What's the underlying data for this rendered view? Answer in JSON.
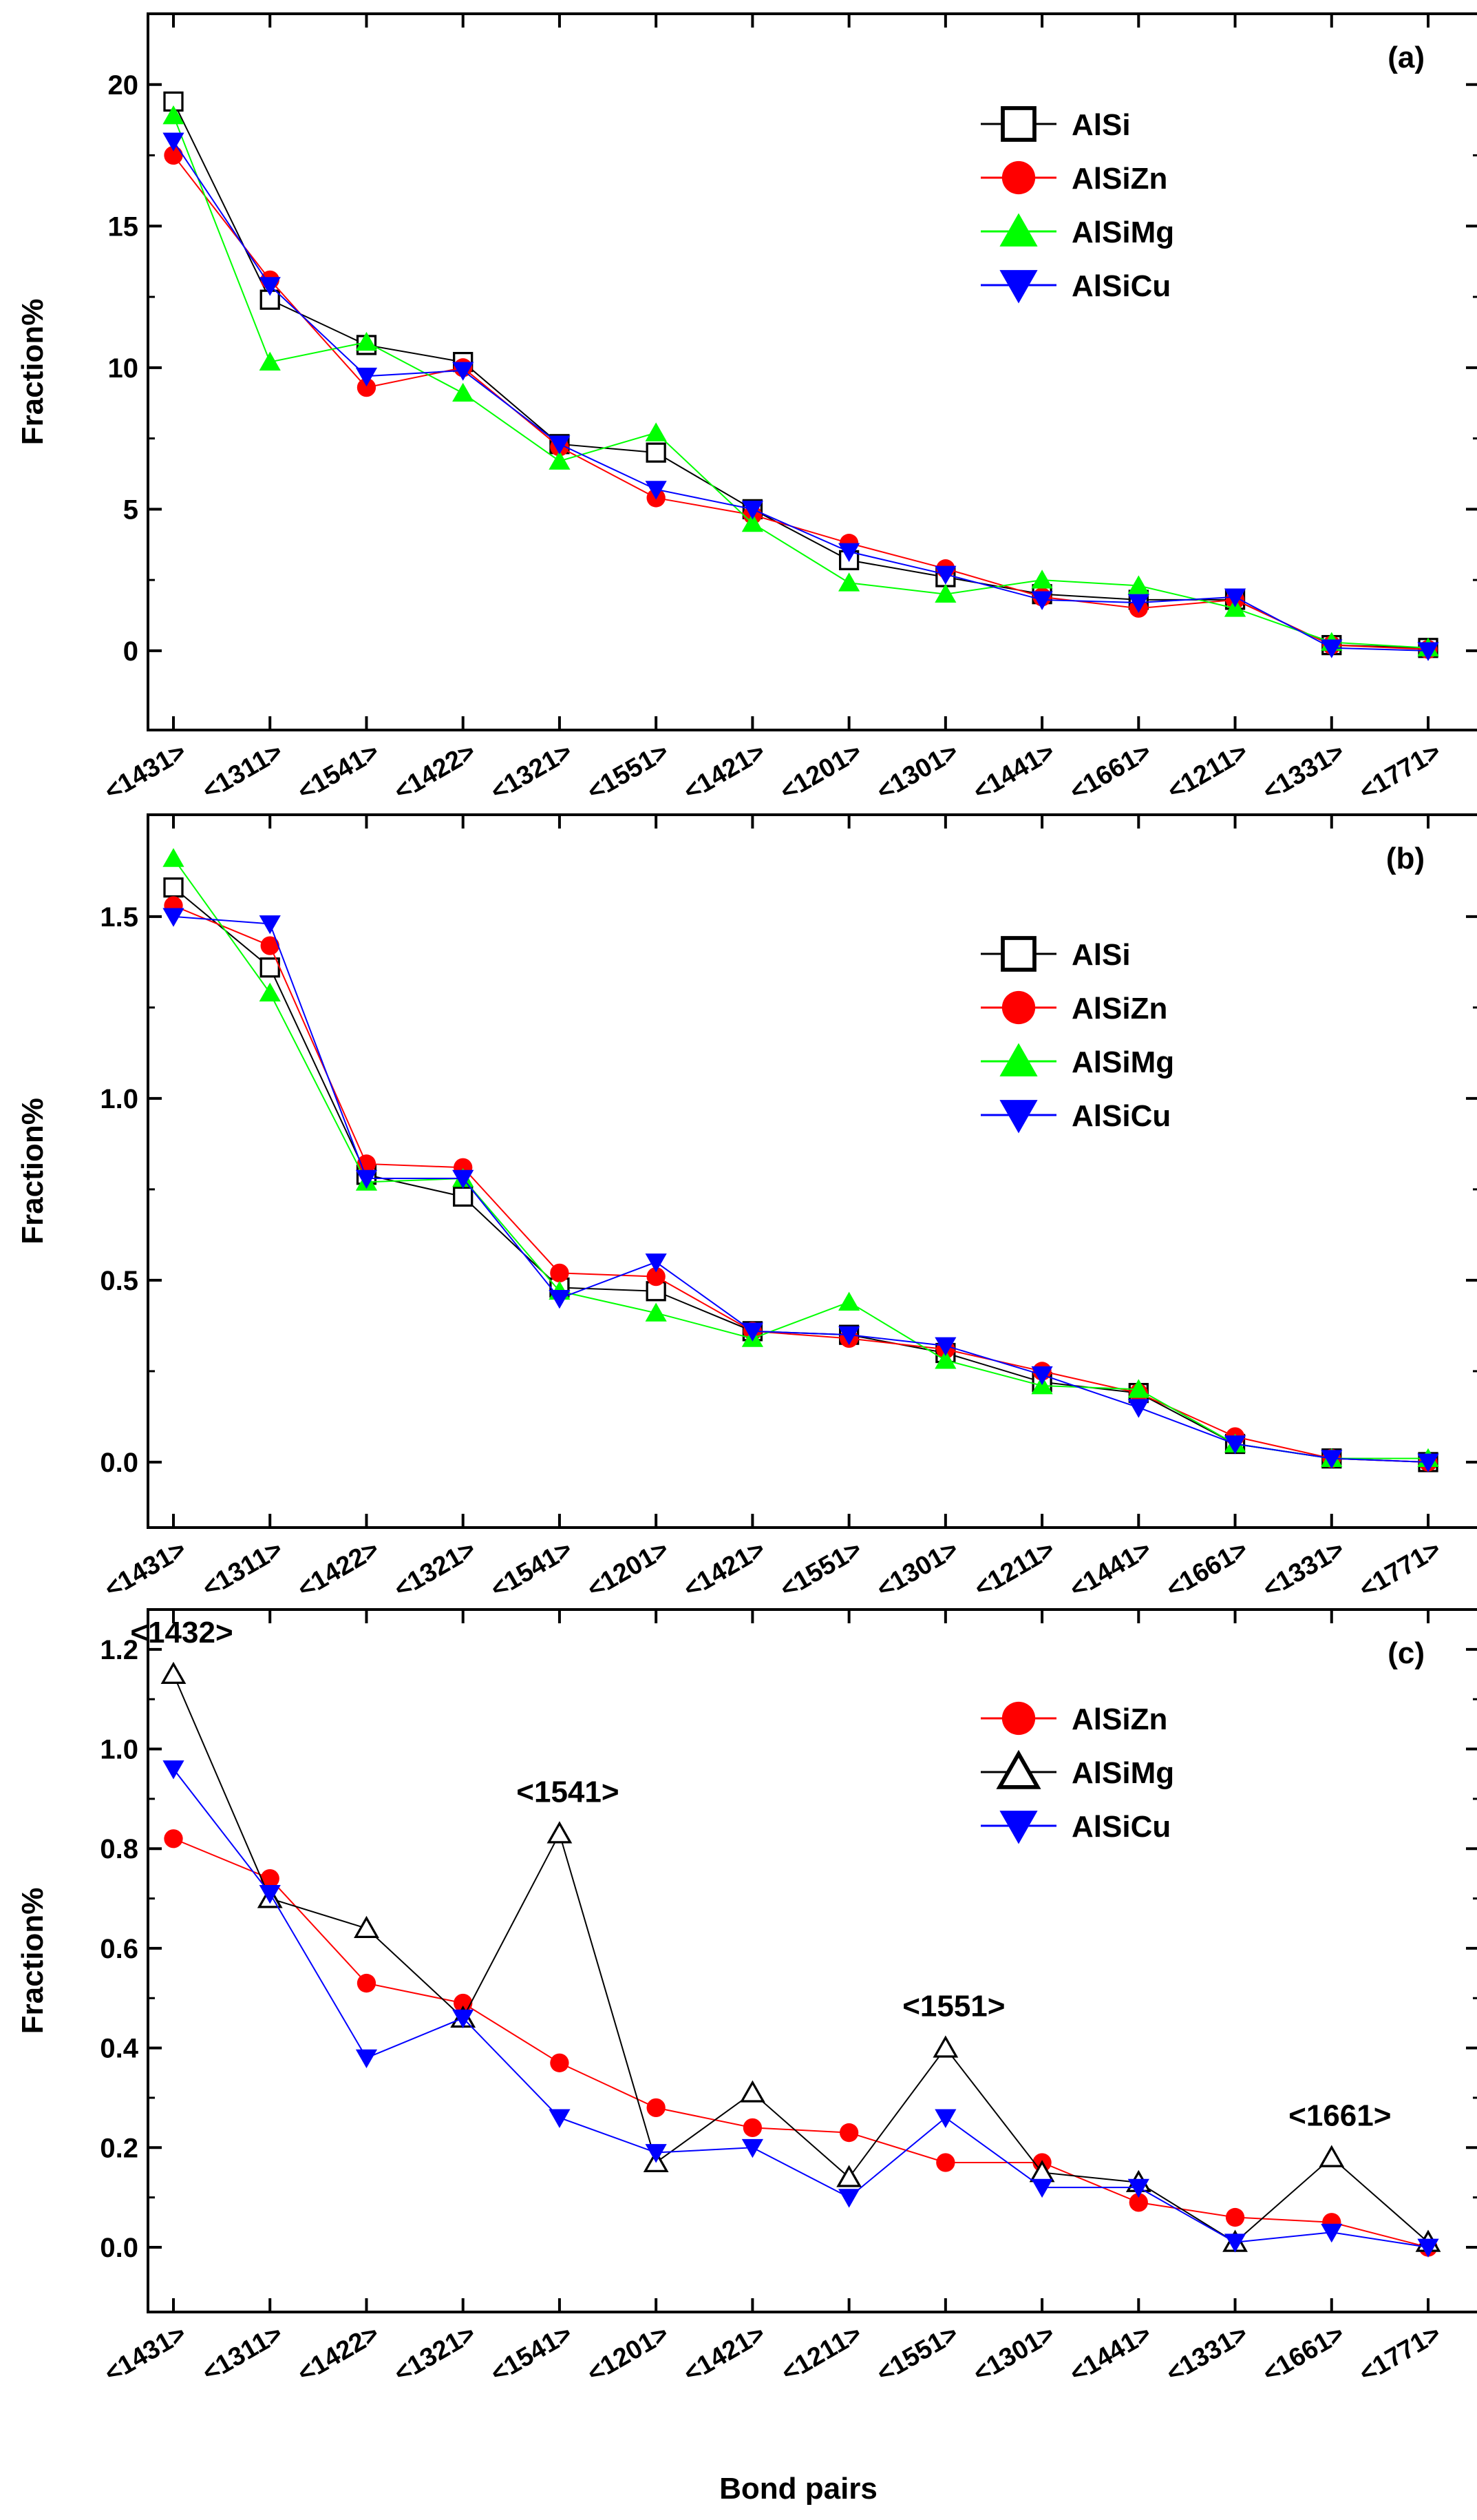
{
  "figure": {
    "x_axis_title": "Bond pairs"
  },
  "chart_data": [
    {
      "type": "line",
      "panel_label": "(a)",
      "ylabel": "Fraction%",
      "xlabel": "",
      "ylim": [
        -2.8,
        22.5
      ],
      "yticks": [
        0,
        5,
        10,
        15,
        20
      ],
      "ytick_labels": [
        "0",
        "5",
        "10",
        "15",
        "20"
      ],
      "grid": false,
      "legend_placement": "top-right",
      "categories": [
        "<1431>",
        "<1311>",
        "<1541>",
        "<1422>",
        "<1321>",
        "<1551>",
        "<1421>",
        "<1201>",
        "<1301>",
        "<1441>",
        "<1661>",
        "<1211>",
        "<1331>",
        "<1771>"
      ],
      "series": [
        {
          "name": "AlSi",
          "marker": "square-open",
          "color": "#000000",
          "values": [
            19.4,
            12.4,
            10.8,
            10.2,
            7.3,
            7.0,
            5.0,
            3.2,
            2.6,
            2.0,
            1.8,
            1.8,
            0.2,
            0.1
          ]
        },
        {
          "name": "AlSiZn",
          "marker": "circle",
          "color": "#ff0000",
          "values": [
            17.5,
            13.1,
            9.3,
            10.0,
            7.2,
            5.4,
            4.8,
            3.8,
            2.9,
            1.9,
            1.5,
            1.8,
            0.2,
            0.05
          ]
        },
        {
          "name": "AlSiMg",
          "marker": "triangle-up",
          "color": "#00ff00",
          "values": [
            18.9,
            10.2,
            10.9,
            9.1,
            6.7,
            7.7,
            4.5,
            2.4,
            2.0,
            2.5,
            2.3,
            1.5,
            0.3,
            0.1
          ]
        },
        {
          "name": "AlSiCu",
          "marker": "triangle-down",
          "color": "#0000ff",
          "values": [
            18.0,
            12.9,
            9.7,
            9.9,
            7.3,
            5.7,
            5.0,
            3.5,
            2.7,
            1.8,
            1.7,
            1.9,
            0.1,
            0.0
          ]
        }
      ]
    },
    {
      "type": "line",
      "panel_label": "(b)",
      "ylabel": "Fraction%",
      "xlabel": "",
      "ylim": [
        -0.18,
        1.78
      ],
      "yticks": [
        0.0,
        0.5,
        1.0,
        1.5
      ],
      "ytick_labels": [
        "0.0",
        "0.5",
        "1.0",
        "1.5"
      ],
      "grid": false,
      "legend_placement": "upper-right",
      "categories": [
        "<1431>",
        "<1311>",
        "<1422>",
        "<1321>",
        "<1541>",
        "<1201>",
        "<1421>",
        "<1551>",
        "<1301>",
        "<1211>",
        "<1441>",
        "<1661>",
        "<1331>",
        "<1771>"
      ],
      "series": [
        {
          "name": "AlSi",
          "marker": "square-open",
          "color": "#000000",
          "values": [
            1.58,
            1.36,
            0.79,
            0.73,
            0.48,
            0.47,
            0.36,
            0.35,
            0.3,
            0.22,
            0.19,
            0.05,
            0.01,
            0.0
          ]
        },
        {
          "name": "AlSiZn",
          "marker": "circle",
          "color": "#ff0000",
          "values": [
            1.53,
            1.42,
            0.82,
            0.81,
            0.52,
            0.51,
            0.36,
            0.34,
            0.31,
            0.25,
            0.19,
            0.07,
            0.01,
            0.0
          ]
        },
        {
          "name": "AlSiMg",
          "marker": "triangle-up",
          "color": "#00ff00",
          "values": [
            1.66,
            1.29,
            0.77,
            0.78,
            0.47,
            0.41,
            0.34,
            0.44,
            0.28,
            0.21,
            0.2,
            0.05,
            0.01,
            0.01
          ]
        },
        {
          "name": "AlSiCu",
          "marker": "triangle-down",
          "color": "#0000ff",
          "values": [
            1.5,
            1.48,
            0.78,
            0.78,
            0.45,
            0.55,
            0.36,
            0.35,
            0.32,
            0.24,
            0.15,
            0.05,
            0.01,
            0.0
          ]
        }
      ]
    },
    {
      "type": "line",
      "panel_label": "(c)",
      "ylabel": "Fraction%",
      "xlabel": "Bond pairs",
      "ylim": [
        -0.13,
        1.28
      ],
      "yticks": [
        0.0,
        0.2,
        0.4,
        0.6,
        0.8,
        1.0,
        1.2
      ],
      "ytick_labels": [
        "0.0",
        "0.2",
        "0.4",
        "0.6",
        "0.8",
        "1.0",
        "1.2"
      ],
      "grid": false,
      "legend_placement": "top-right",
      "categories": [
        "<1431>",
        "<1311>",
        "<1422>",
        "<1321>",
        "<1541>",
        "<1201>",
        "<1421>",
        "<1211>",
        "<1551>",
        "<1301>",
        "<1441>",
        "<1331>",
        "<1661>",
        "<1771>"
      ],
      "series": [
        {
          "name": "AlSiZn",
          "marker": "circle",
          "color": "#ff0000",
          "values": [
            0.82,
            0.74,
            0.53,
            0.49,
            0.37,
            0.28,
            0.24,
            0.23,
            0.17,
            0.17,
            0.09,
            0.06,
            0.05,
            0.0
          ]
        },
        {
          "name": "AlSiMg",
          "marker": "triangle-up-open",
          "color": "#000000",
          "values": [
            1.15,
            0.7,
            0.64,
            0.46,
            0.83,
            0.17,
            0.31,
            0.14,
            0.4,
            0.15,
            0.13,
            0.01,
            0.18,
            0.01
          ]
        },
        {
          "name": "AlSiCu",
          "marker": "triangle-down",
          "color": "#0000ff",
          "values": [
            0.96,
            0.71,
            0.38,
            0.46,
            0.26,
            0.19,
            0.2,
            0.1,
            0.26,
            0.12,
            0.12,
            0.01,
            0.03,
            0.0
          ]
        }
      ],
      "annotations": [
        {
          "text": "<1432>",
          "category_index": 0,
          "y": 1.15
        },
        {
          "text": "<1541>",
          "category_index": 4,
          "y": 0.83
        },
        {
          "text": "<1551>",
          "category_index": 8,
          "y": 0.4
        },
        {
          "text": "<1661>",
          "category_index": 12,
          "y": 0.18
        }
      ]
    }
  ]
}
